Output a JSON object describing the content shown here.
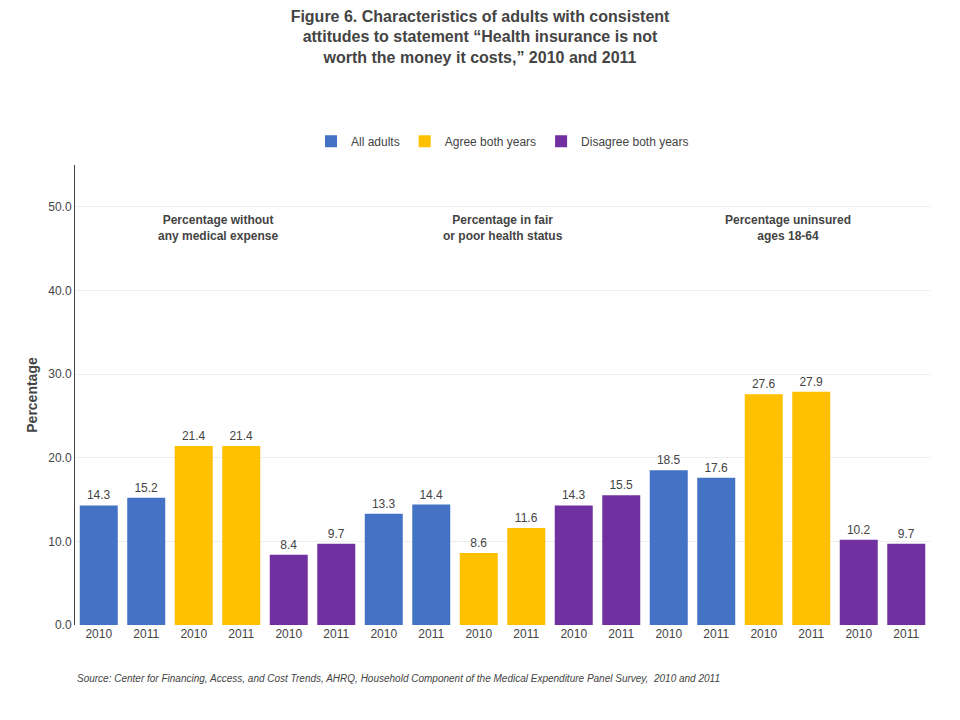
{
  "chart_data": {
    "type": "bar",
    "title": "Figure 6. Characteristics of adults with consistent\nattitudes to statement “Health insurance is not\nworth the money it costs,” 2010 and 2011",
    "ylabel": "Percentage",
    "source": "Source: Center for Financing, Access, and Cost Trends, AHRQ, Household Component of the Medical Expenditure Panel Survey,  2010 and 2011",
    "categories": [
      "2010",
      "2011",
      "2010",
      "2011",
      "2010",
      "2011",
      "2010",
      "2011",
      "2010",
      "2011",
      "2010",
      "2011",
      "2010",
      "2011",
      "2010",
      "2011",
      "2010",
      "2011"
    ],
    "series": [
      {
        "name": "All adults",
        "color": "#4472c4",
        "values": [
          14.3,
          15.2,
          null,
          null,
          null,
          null,
          13.3,
          14.4,
          null,
          null,
          null,
          null,
          18.5,
          17.6,
          null,
          null,
          null,
          null
        ]
      },
      {
        "name": "Agree both years",
        "color": "#ffc000",
        "values": [
          null,
          null,
          21.4,
          21.4,
          null,
          null,
          null,
          null,
          8.6,
          11.6,
          null,
          null,
          null,
          null,
          27.6,
          27.9,
          null,
          null
        ]
      },
      {
        "name": "Disagree both years",
        "color": "#7030a0",
        "values": [
          null,
          null,
          null,
          null,
          8.4,
          9.7,
          null,
          null,
          null,
          null,
          14.3,
          15.5,
          null,
          null,
          null,
          null,
          10.2,
          9.7
        ]
      }
    ],
    "annotations": [
      "Percentage without\nany medical expense",
      "Percentage in fair\nor poor health status",
      "Percentage uninsured\nages 18-64"
    ],
    "ylim": [
      0.0,
      55.0
    ],
    "yticks": [
      {
        "value": 0,
        "label": "0.0"
      },
      {
        "value": 10,
        "label": "10.0"
      },
      {
        "value": 20,
        "label": "20.0"
      },
      {
        "value": 30,
        "label": "30.0"
      },
      {
        "value": 40,
        "label": "40.0"
      },
      {
        "value": 50,
        "label": "50.0"
      }
    ],
    "grid": true,
    "legend": "top",
    "data_labels": true
  }
}
